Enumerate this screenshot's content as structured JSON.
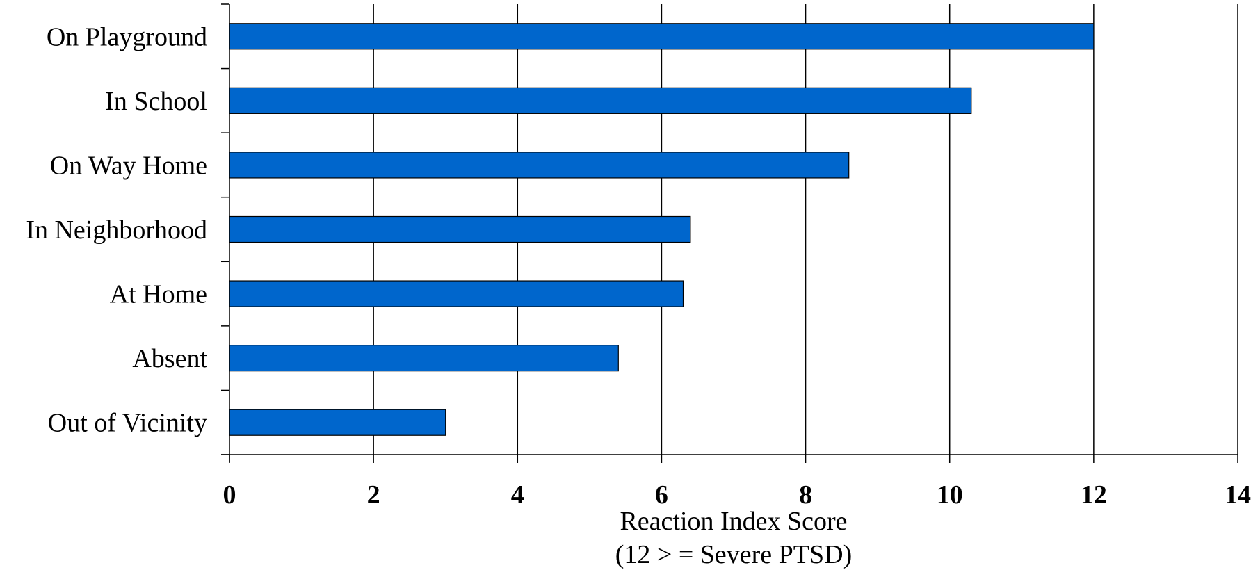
{
  "chart_data": {
    "type": "bar",
    "orientation": "horizontal",
    "categories": [
      "On Playground",
      "In School",
      "On Way Home",
      "In Neighborhood",
      "At Home",
      "Absent",
      "Out of Vicinity"
    ],
    "values": [
      12.0,
      10.3,
      8.6,
      6.4,
      6.3,
      5.4,
      3.0
    ],
    "xlabel": "Reaction Index Score",
    "xlabel_sub": "(12 > = Severe PTSD)",
    "xlim": [
      0,
      14
    ],
    "xticks": [
      0,
      2,
      4,
      6,
      8,
      10,
      12,
      14
    ],
    "grid": "vertical",
    "bar_color": "#0066CC",
    "legend": "none"
  }
}
